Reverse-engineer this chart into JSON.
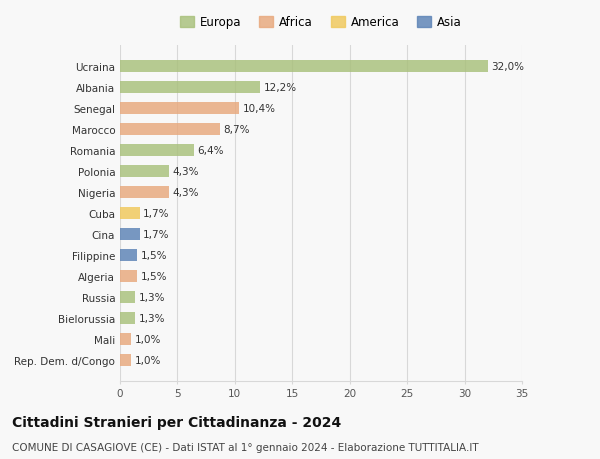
{
  "title": "Cittadini Stranieri per Cittadinanza - 2024",
  "subtitle": "COMUNE DI CASAGIOVE (CE) - Dati ISTAT al 1° gennaio 2024 - Elaborazione TUTTITALIA.IT",
  "categories": [
    "Ucraina",
    "Albania",
    "Senegal",
    "Marocco",
    "Romania",
    "Polonia",
    "Nigeria",
    "Cuba",
    "Cina",
    "Filippine",
    "Algeria",
    "Russia",
    "Bielorussia",
    "Mali",
    "Rep. Dem. d/Congo"
  ],
  "values": [
    32.0,
    12.2,
    10.4,
    8.7,
    6.4,
    4.3,
    4.3,
    1.7,
    1.7,
    1.5,
    1.5,
    1.3,
    1.3,
    1.0,
    1.0
  ],
  "labels": [
    "32,0%",
    "12,2%",
    "10,4%",
    "8,7%",
    "6,4%",
    "4,3%",
    "4,3%",
    "1,7%",
    "1,7%",
    "1,5%",
    "1,5%",
    "1,3%",
    "1,3%",
    "1,0%",
    "1,0%"
  ],
  "continents": [
    "Europa",
    "Europa",
    "Africa",
    "Africa",
    "Europa",
    "Europa",
    "Africa",
    "America",
    "Asia",
    "Asia",
    "Africa",
    "Europa",
    "Europa",
    "Africa",
    "Africa"
  ],
  "continent_colors": {
    "Europa": "#a8c07a",
    "Africa": "#e8a87c",
    "America": "#f0c85a",
    "Asia": "#5b82b5"
  },
  "legend_order": [
    "Europa",
    "Africa",
    "America",
    "Asia"
  ],
  "xlim": [
    0,
    35
  ],
  "xticks": [
    0,
    5,
    10,
    15,
    20,
    25,
    30,
    35
  ],
  "background_color": "#f8f8f8",
  "grid_color": "#d8d8d8",
  "title_fontsize": 10,
  "subtitle_fontsize": 7.5,
  "bar_height": 0.55,
  "label_fontsize": 7.5,
  "ytick_fontsize": 7.5,
  "xtick_fontsize": 7.5
}
